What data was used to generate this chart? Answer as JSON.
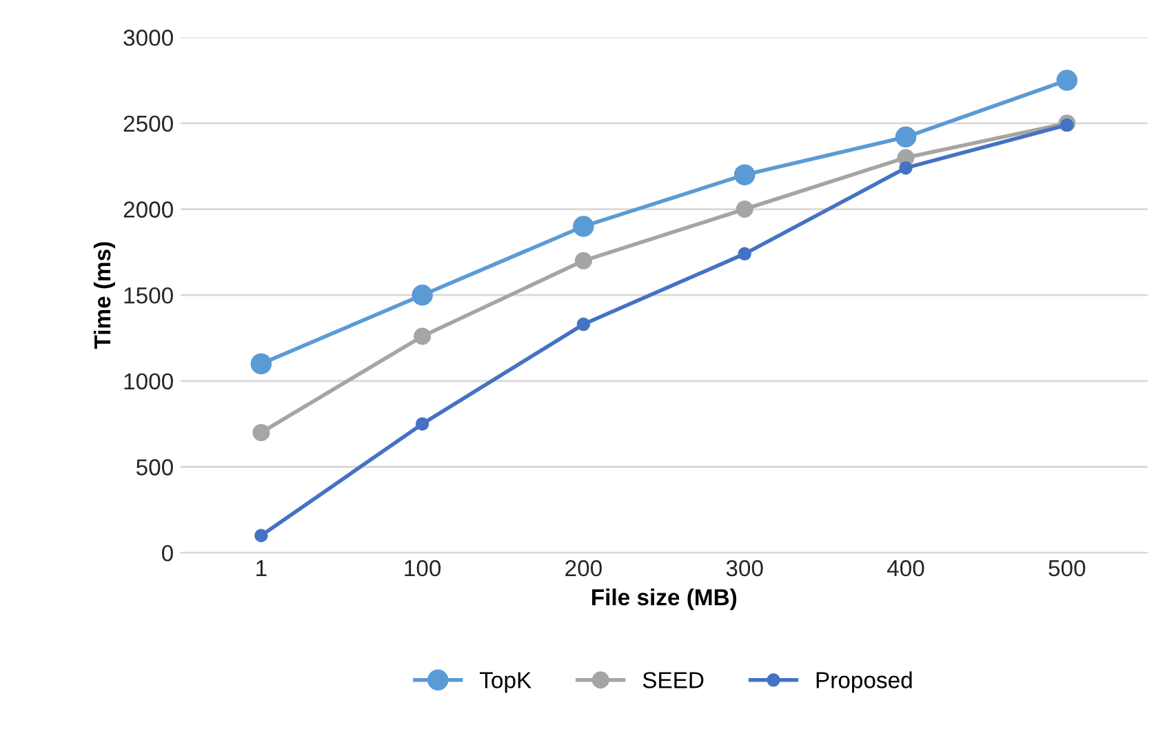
{
  "chart_data": {
    "type": "line",
    "xlabel": "File size (MB)",
    "ylabel": "Time (ms)",
    "categories": [
      "1",
      "100",
      "200",
      "300",
      "400",
      "500"
    ],
    "series": [
      {
        "name": "TopK",
        "color": "#5b9bd5",
        "values": [
          1100,
          1500,
          1900,
          2200,
          2420,
          2750
        ]
      },
      {
        "name": "SEED",
        "color": "#a5a5a5",
        "values": [
          700,
          1260,
          1700,
          2000,
          2300,
          2500
        ]
      },
      {
        "name": "Proposed",
        "color": "#4472c4",
        "values": [
          100,
          750,
          1330,
          1740,
          2240,
          2490
        ]
      }
    ],
    "ylim": [
      0,
      3000
    ],
    "yticks": [
      0,
      500,
      1000,
      1500,
      2000,
      2500,
      3000
    ],
    "grid": "y",
    "legend": "bottom",
    "marker": "circle",
    "line_style": "solid"
  }
}
